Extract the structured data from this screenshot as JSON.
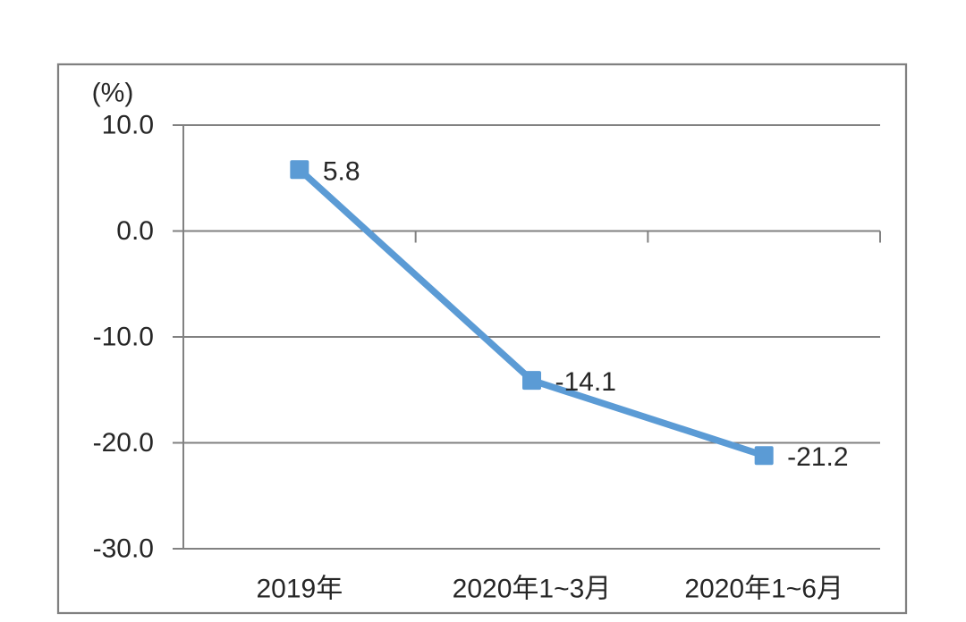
{
  "chart_data": {
    "type": "line",
    "title": "",
    "unit_label": "(%)",
    "categories": [
      "2019年",
      "2020年1~3月",
      "2020年1~6月"
    ],
    "values": [
      5.8,
      -14.1,
      -21.2
    ],
    "data_labels": [
      "5.8",
      "-14.1",
      "-21.2"
    ],
    "y_ticks": [
      10.0,
      0.0,
      -10.0,
      -20.0,
      -30.0
    ],
    "y_tick_labels": [
      "10.0",
      "0.0",
      "-10.0",
      "-20.0",
      "-30.0"
    ],
    "ylim": [
      -30,
      10
    ],
    "xlabel": "",
    "ylabel": "(%)",
    "grid": true,
    "legend_position": "none",
    "marker": "square",
    "colors": {
      "series": "#5b9bd5",
      "grid": "#818181",
      "axis": "#818181",
      "border": "#808080",
      "text": "#262626",
      "background": "#ffffff"
    }
  }
}
